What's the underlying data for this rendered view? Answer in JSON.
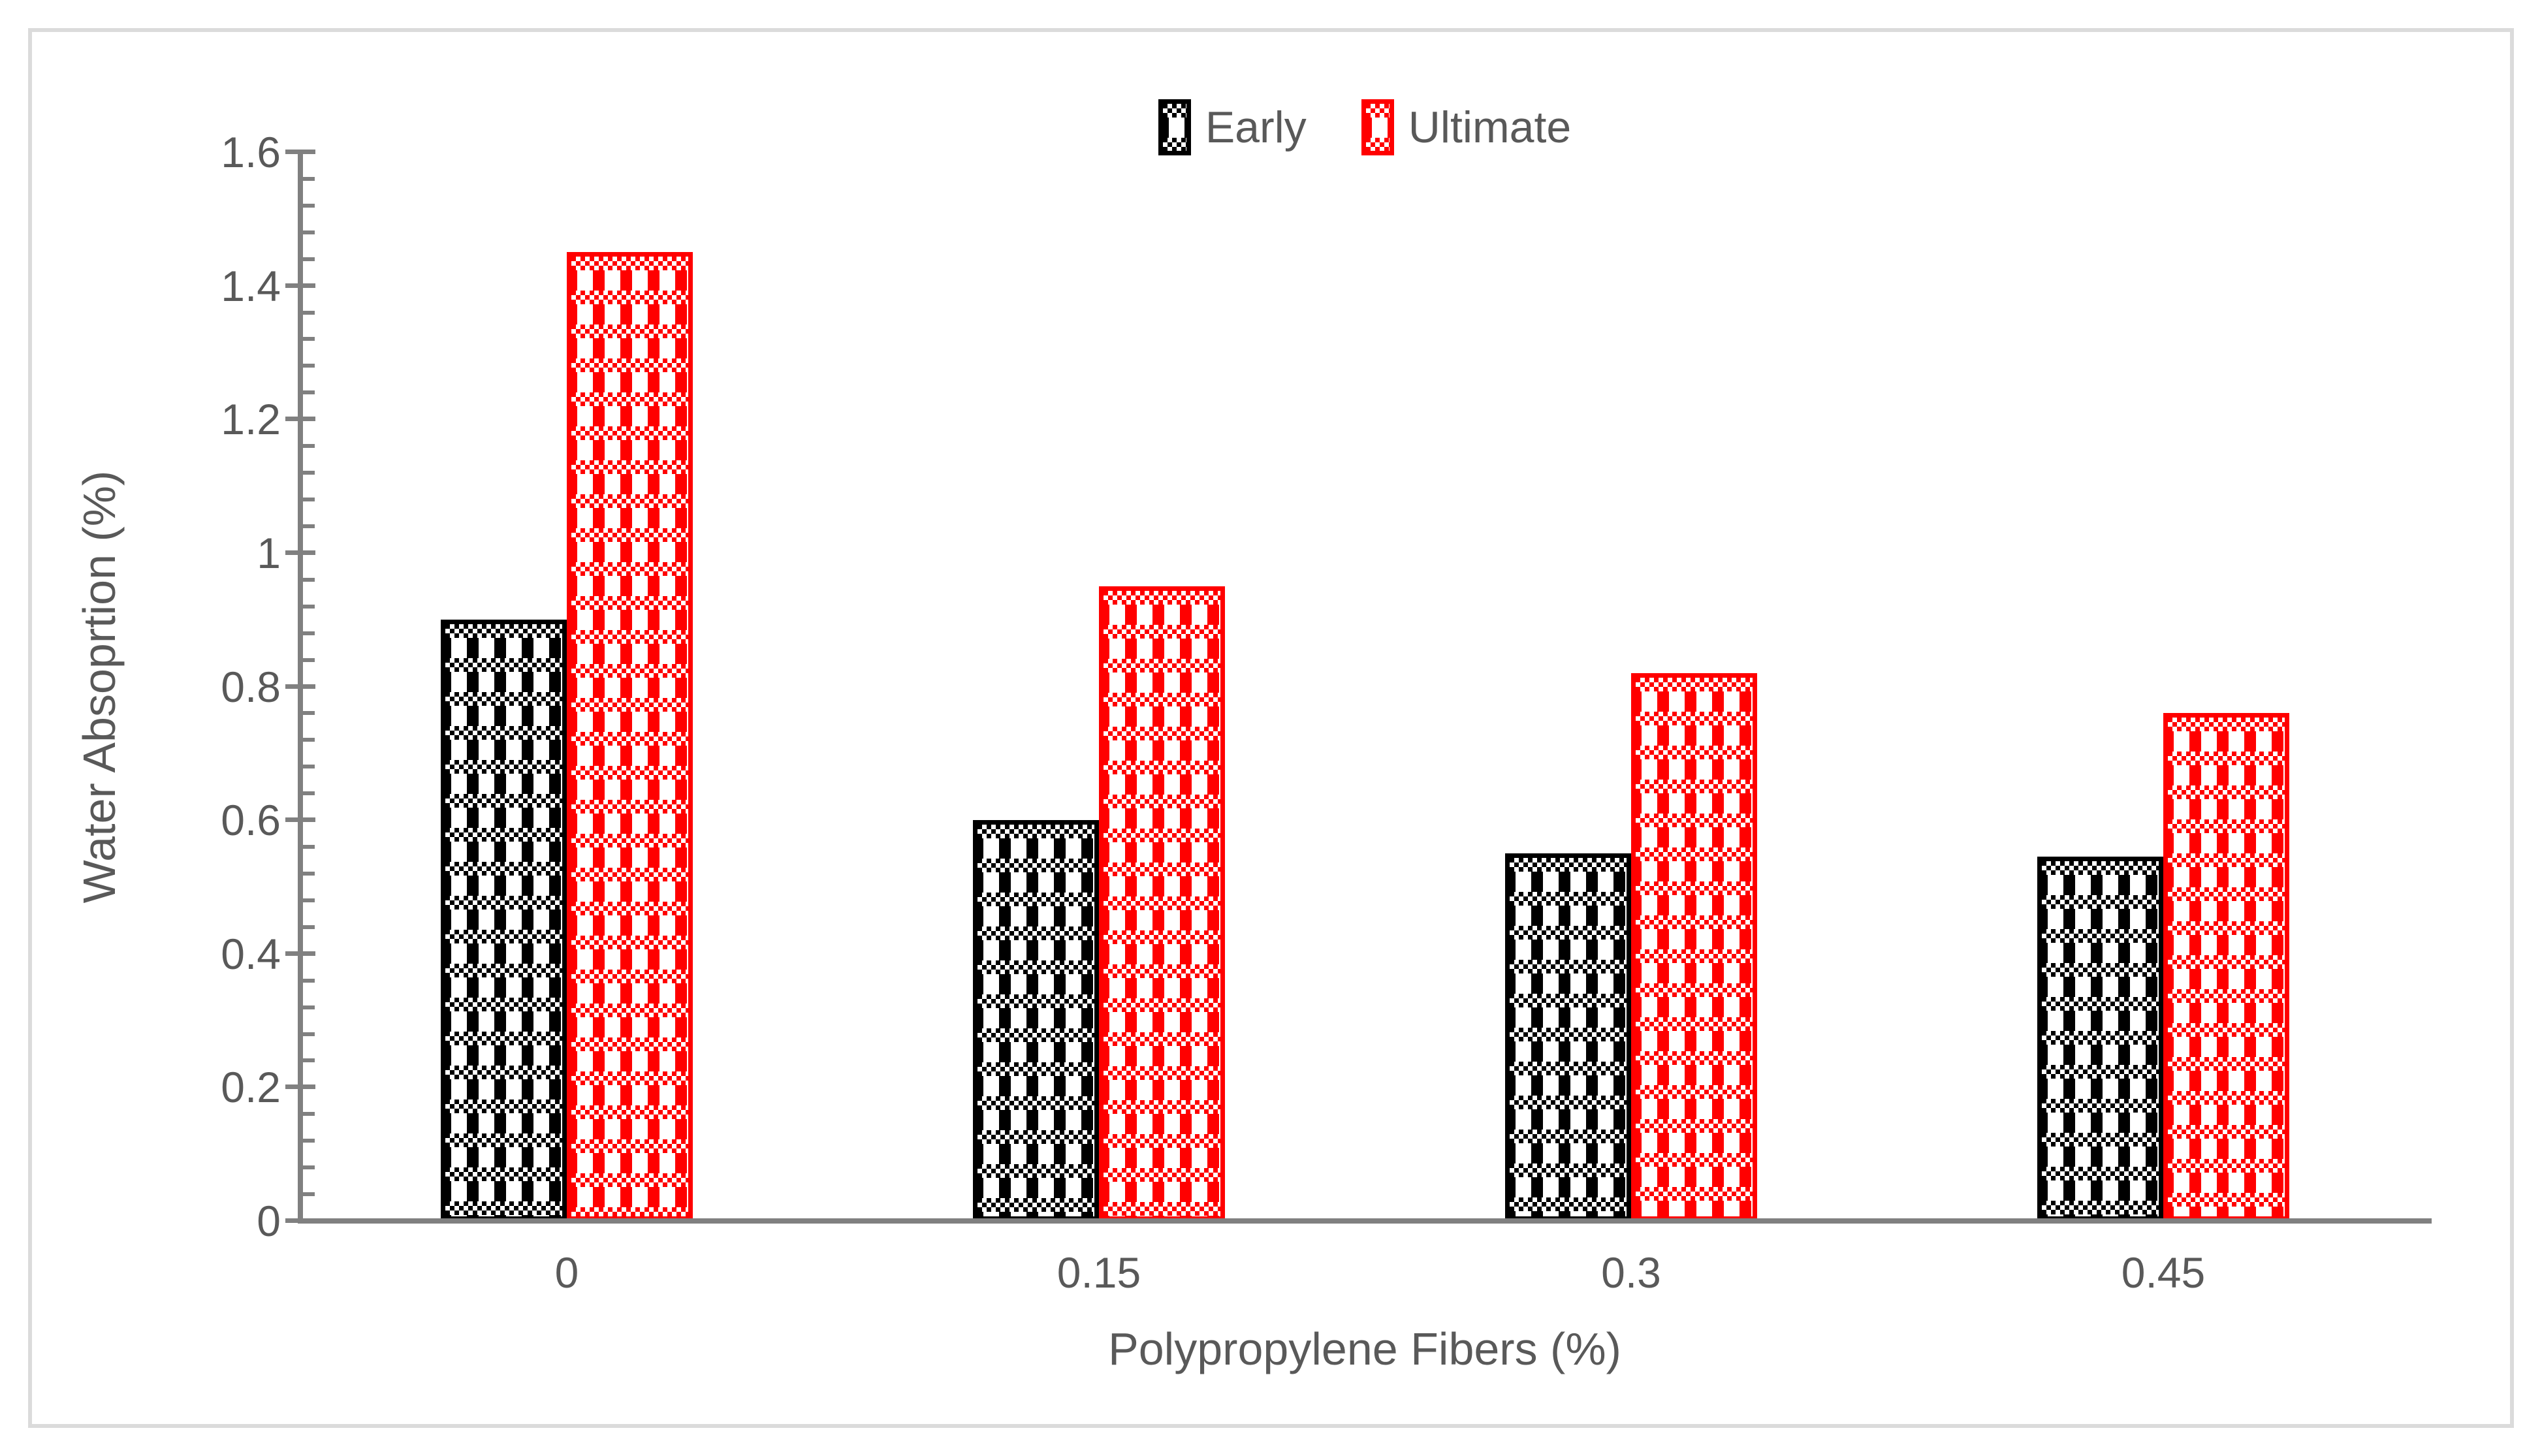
{
  "chart_data": {
    "type": "bar",
    "title": "",
    "categories": [
      "0",
      "0.15",
      "0.3",
      "0.45"
    ],
    "series": [
      {
        "name": "Early",
        "color": "#000000",
        "pattern": "checker-plaid",
        "values": [
          0.9,
          0.6,
          0.55,
          0.545
        ]
      },
      {
        "name": "Ultimate",
        "color": "#FF0000",
        "pattern": "checker-plaid",
        "values": [
          1.45,
          0.95,
          0.82,
          0.76
        ]
      }
    ],
    "xlabel": "Polypropylene Fibers (%)",
    "ylabel": "Water Absoprtion (%)",
    "ylim": [
      0,
      1.6
    ],
    "ytick_interval": 0.2,
    "minor_tick_interval": 0.04,
    "yticks": [
      "0",
      "0.2",
      "0.4",
      "0.6",
      "0.8",
      "1",
      "1.2",
      "1.4",
      "1.6"
    ],
    "grid": false,
    "legend_position": "top-center",
    "legend_entries": [
      "Early",
      "Ultimate"
    ]
  },
  "colors": {
    "series_early": "#000000",
    "series_ultimate": "#FF0000",
    "axis_line": "#808080",
    "text": "#595959",
    "frame_border": "#DBDBDB",
    "background": "#FFFFFF"
  }
}
